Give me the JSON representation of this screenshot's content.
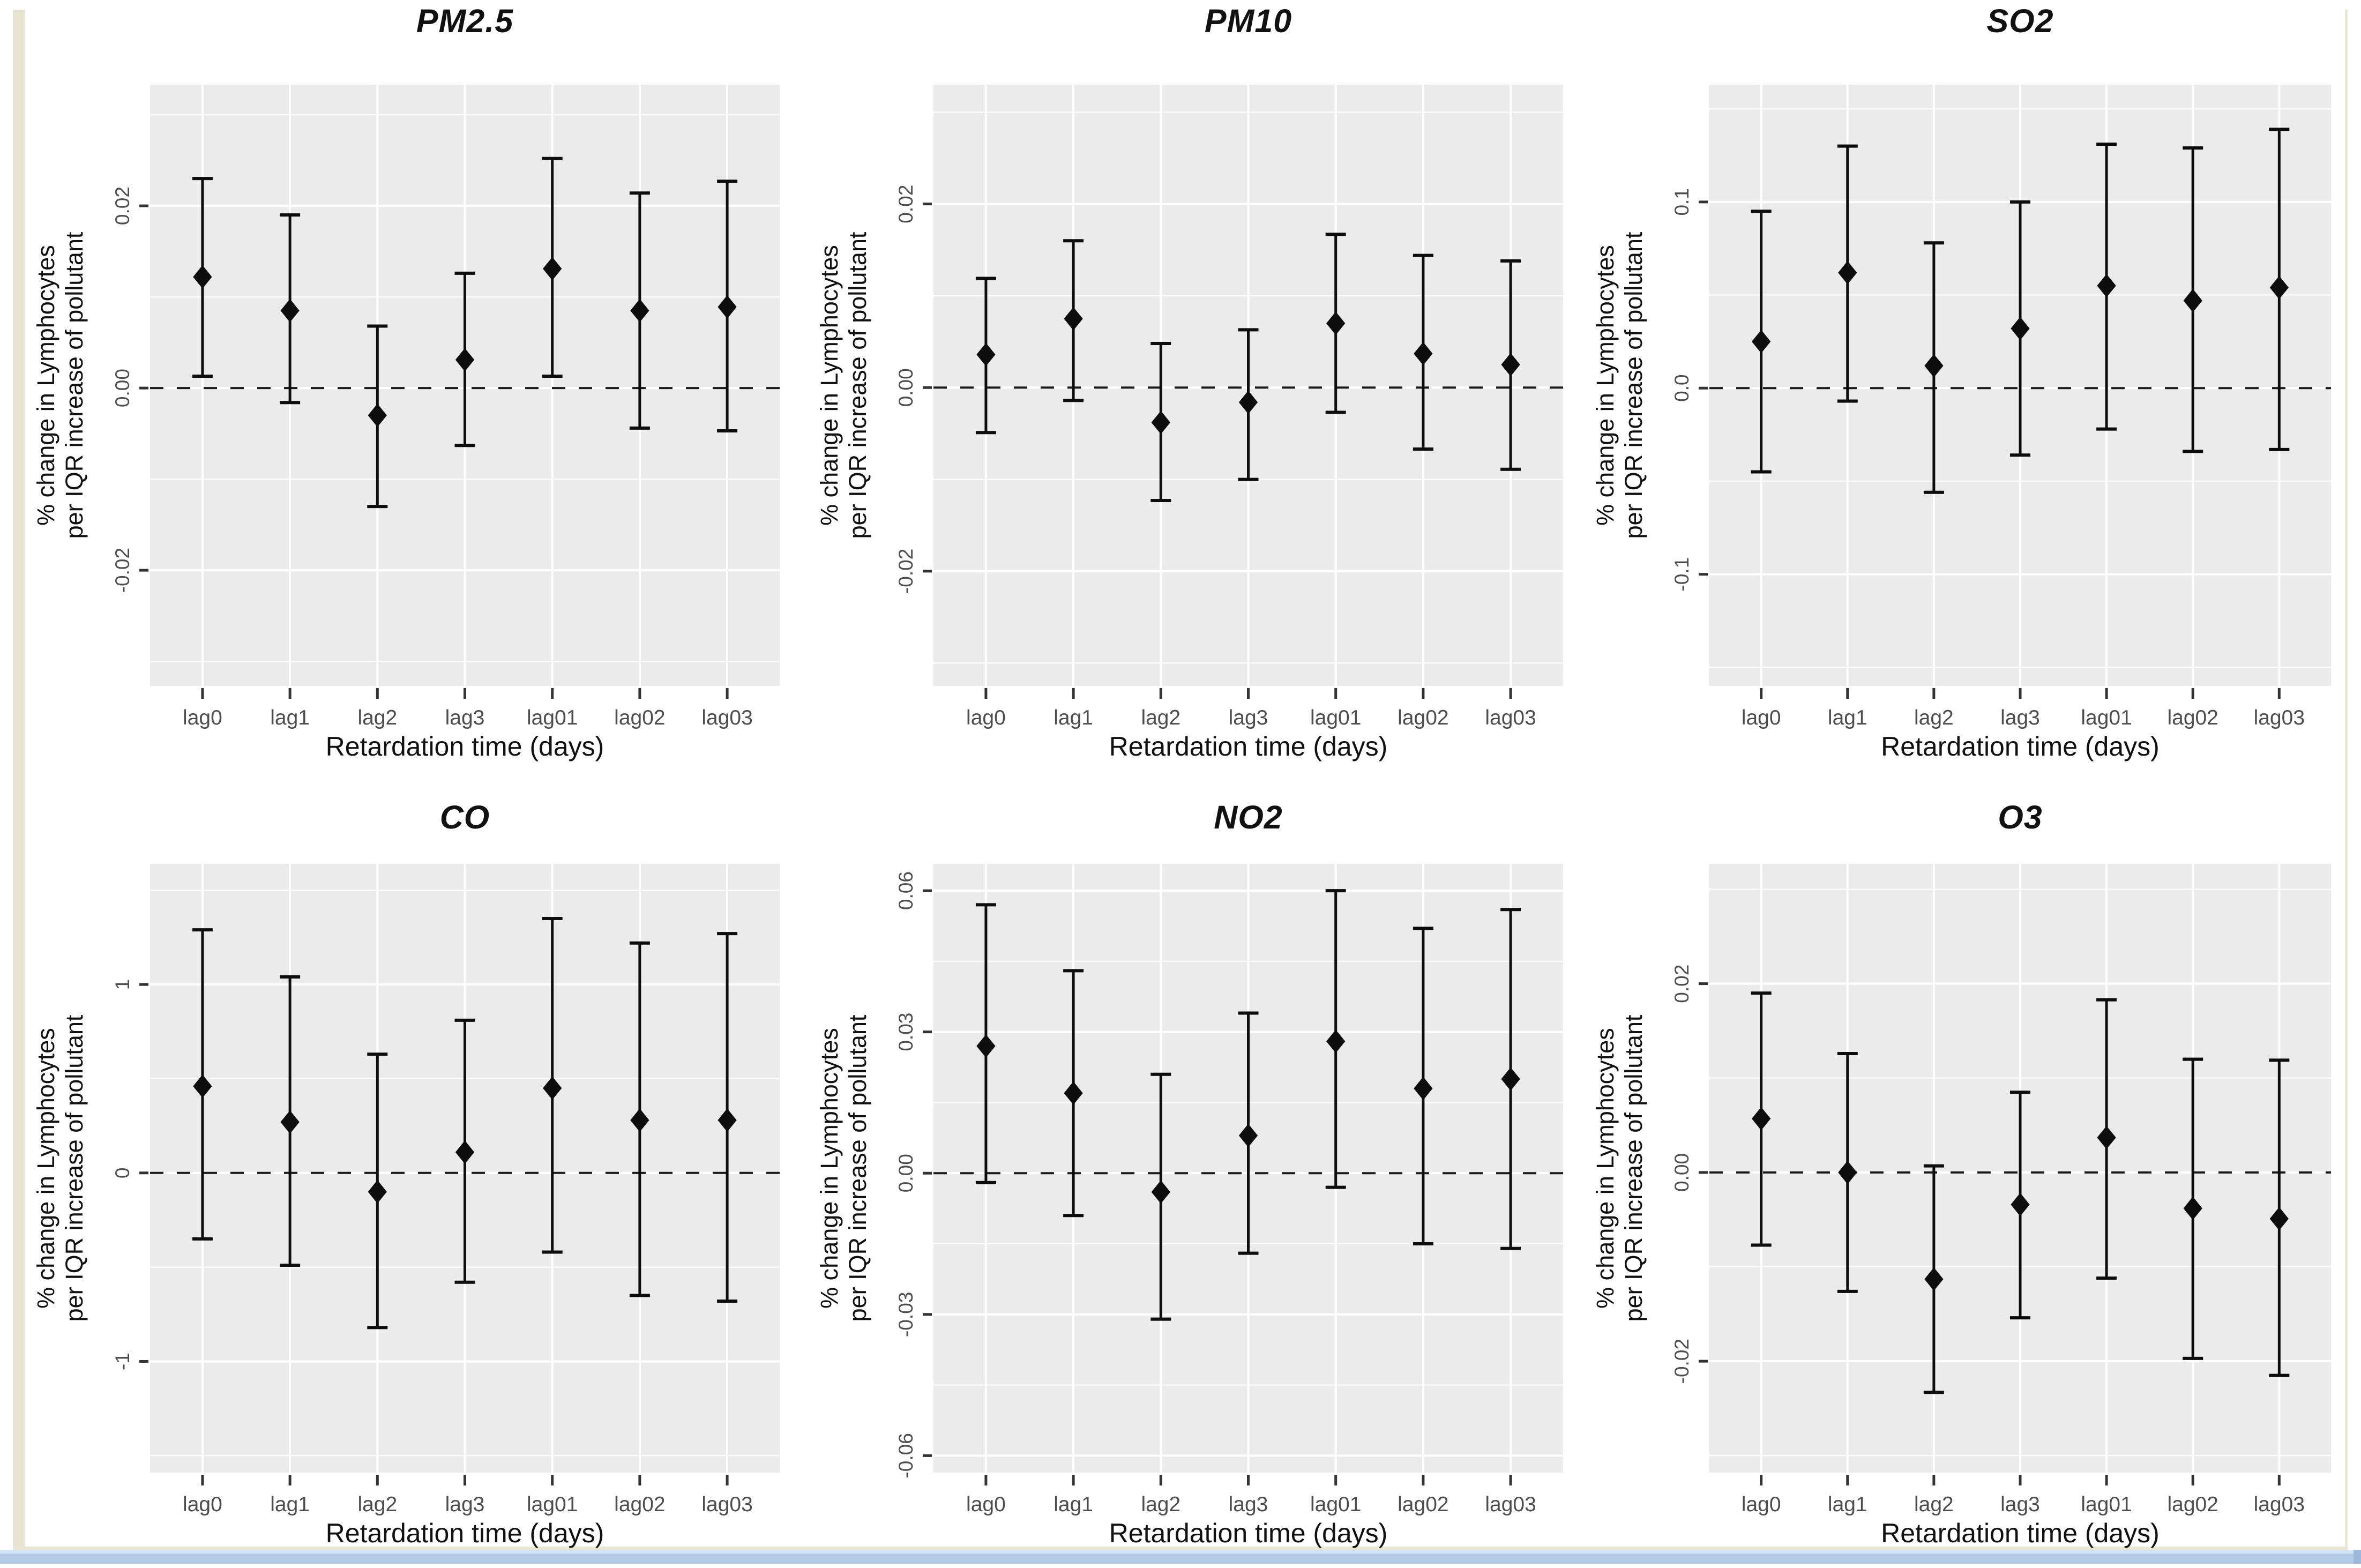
{
  "page": {
    "background": "#ffffff",
    "left_margin_strip_color": "#e9e4d1",
    "page_edge_line_color": "#ece7d5",
    "scrollbar": {
      "track_color": "#b3cbe7",
      "highlight_color": "#d3e4f5",
      "end_cap_color": "#9cb8da"
    }
  },
  "axes": {
    "x_label": "Retardation time (days)",
    "y_label_line1": "% change in  Lymphocytes",
    "y_label_line2": "per IQR increase of pollutant",
    "categories": [
      "lag0",
      "lag1",
      "lag2",
      "lag3",
      "lag01",
      "lag02",
      "lag03"
    ],
    "panel_background": "#ebebeb",
    "gridline_color": "#ffffff",
    "tick_label_color": "#4d4d4d",
    "point_color": "#0d0d0d"
  },
  "chart_data": [
    {
      "type": "errorbar",
      "title": "PM2.5",
      "xlabel": "Retardation time (days)",
      "ylabel": "% change in Lymphocytes per IQR increase of pollutant",
      "ylim": [
        -0.0327,
        0.0333
      ],
      "yticks": [
        0.02,
        0,
        -0.02
      ],
      "ytick_labels": [
        "0.02",
        "0.00",
        "-0.02"
      ],
      "minor_step": 0.01,
      "zero_reference_line": 0,
      "points": [
        {
          "lag": "lag0",
          "estimate": 0.0122,
          "ci_low": 0.0013,
          "ci_high": 0.023
        },
        {
          "lag": "lag1",
          "estimate": 0.0085,
          "ci_low": -0.0016,
          "ci_high": 0.019
        },
        {
          "lag": "lag2",
          "estimate": -0.003,
          "ci_low": -0.013,
          "ci_high": 0.0068
        },
        {
          "lag": "lag3",
          "estimate": 0.0031,
          "ci_low": -0.0063,
          "ci_high": 0.0126
        },
        {
          "lag": "lag01",
          "estimate": 0.0131,
          "ci_low": 0.0013,
          "ci_high": 0.0252
        },
        {
          "lag": "lag02",
          "estimate": 0.0085,
          "ci_low": -0.0044,
          "ci_high": 0.0214
        },
        {
          "lag": "lag03",
          "estimate": 0.0089,
          "ci_low": -0.0047,
          "ci_high": 0.0227
        }
      ]
    },
    {
      "type": "errorbar",
      "title": "PM10",
      "xlabel": "Retardation time (days)",
      "ylabel": "% change in Lymphocytes per IQR increase of pollutant",
      "ylim": [
        -0.0325,
        0.033
      ],
      "yticks": [
        0.02,
        0,
        -0.02
      ],
      "ytick_labels": [
        "0.02",
        "0.00",
        "-0.02"
      ],
      "minor_step": 0.01,
      "zero_reference_line": 0,
      "points": [
        {
          "lag": "lag0",
          "estimate": 0.0036,
          "ci_low": -0.0049,
          "ci_high": 0.0119
        },
        {
          "lag": "lag1",
          "estimate": 0.0075,
          "ci_low": -0.0014,
          "ci_high": 0.016
        },
        {
          "lag": "lag2",
          "estimate": -0.0038,
          "ci_low": -0.0123,
          "ci_high": 0.0048
        },
        {
          "lag": "lag3",
          "estimate": -0.0016,
          "ci_low": -0.01,
          "ci_high": 0.0063
        },
        {
          "lag": "lag01",
          "estimate": 0.007,
          "ci_low": -0.0027,
          "ci_high": 0.0167
        },
        {
          "lag": "lag02",
          "estimate": 0.0037,
          "ci_low": -0.0067,
          "ci_high": 0.0144
        },
        {
          "lag": "lag03",
          "estimate": 0.0025,
          "ci_low": -0.0089,
          "ci_high": 0.0138
        }
      ]
    },
    {
      "type": "errorbar",
      "title": "SO2",
      "xlabel": "Retardation time (days)",
      "ylabel": "% change in Lymphocytes per IQR increase of pollutant",
      "ylim": [
        -0.16,
        0.163
      ],
      "yticks": [
        0.1,
        0,
        -0.1
      ],
      "ytick_labels": [
        "0.1",
        "0.0",
        "-0.1"
      ],
      "minor_step": 0.05,
      "zero_reference_line": 0,
      "points": [
        {
          "lag": "lag0",
          "estimate": 0.025,
          "ci_low": -0.045,
          "ci_high": 0.095
        },
        {
          "lag": "lag1",
          "estimate": 0.062,
          "ci_low": -0.007,
          "ci_high": 0.13
        },
        {
          "lag": "lag2",
          "estimate": 0.012,
          "ci_low": -0.056,
          "ci_high": 0.078
        },
        {
          "lag": "lag3",
          "estimate": 0.032,
          "ci_low": -0.036,
          "ci_high": 0.1
        },
        {
          "lag": "lag01",
          "estimate": 0.055,
          "ci_low": -0.022,
          "ci_high": 0.131
        },
        {
          "lag": "lag02",
          "estimate": 0.047,
          "ci_low": -0.034,
          "ci_high": 0.129
        },
        {
          "lag": "lag03",
          "estimate": 0.054,
          "ci_low": -0.033,
          "ci_high": 0.139
        }
      ]
    },
    {
      "type": "errorbar",
      "title": "CO",
      "xlabel": "Retardation time (days)",
      "ylabel": "% change in Lymphocytes per IQR increase of pollutant",
      "ylim": [
        -1.59,
        1.64
      ],
      "yticks": [
        1,
        0,
        -1
      ],
      "ytick_labels": [
        "1",
        "0",
        "-1"
      ],
      "minor_step": 0.5,
      "zero_reference_line": 0,
      "points": [
        {
          "lag": "lag0",
          "estimate": 0.46,
          "ci_low": -0.35,
          "ci_high": 1.29
        },
        {
          "lag": "lag1",
          "estimate": 0.27,
          "ci_low": -0.49,
          "ci_high": 1.04
        },
        {
          "lag": "lag2",
          "estimate": -0.1,
          "ci_low": -0.82,
          "ci_high": 0.63
        },
        {
          "lag": "lag3",
          "estimate": 0.11,
          "ci_low": -0.58,
          "ci_high": 0.81
        },
        {
          "lag": "lag01",
          "estimate": 0.45,
          "ci_low": -0.42,
          "ci_high": 1.35
        },
        {
          "lag": "lag02",
          "estimate": 0.28,
          "ci_low": -0.65,
          "ci_high": 1.22
        },
        {
          "lag": "lag03",
          "estimate": 0.28,
          "ci_low": -0.68,
          "ci_high": 1.27
        }
      ]
    },
    {
      "type": "errorbar",
      "title": "NO2",
      "xlabel": "Retardation time (days)",
      "ylabel": "% change in Lymphocytes per IQR increase of pollutant",
      "ylim": [
        -0.0636,
        0.0657
      ],
      "yticks": [
        0.06,
        0.03,
        0,
        -0.03,
        -0.06
      ],
      "ytick_labels": [
        "0.06",
        "0.03",
        "0.00",
        "-0.03",
        "-0.06"
      ],
      "minor_step": 0.015,
      "zero_reference_line": 0,
      "points": [
        {
          "lag": "lag0",
          "estimate": 0.027,
          "ci_low": -0.002,
          "ci_high": 0.057
        },
        {
          "lag": "lag1",
          "estimate": 0.017,
          "ci_low": -0.009,
          "ci_high": 0.043
        },
        {
          "lag": "lag2",
          "estimate": -0.004,
          "ci_low": -0.031,
          "ci_high": 0.021
        },
        {
          "lag": "lag3",
          "estimate": 0.008,
          "ci_low": -0.017,
          "ci_high": 0.034
        },
        {
          "lag": "lag01",
          "estimate": 0.028,
          "ci_low": -0.003,
          "ci_high": 0.06
        },
        {
          "lag": "lag02",
          "estimate": 0.018,
          "ci_low": -0.015,
          "ci_high": 0.052
        },
        {
          "lag": "lag03",
          "estimate": 0.02,
          "ci_low": -0.016,
          "ci_high": 0.056
        }
      ]
    },
    {
      "type": "errorbar",
      "title": "O3",
      "xlabel": "Retardation time (days)",
      "ylabel": "% change in Lymphocytes per IQR increase of pollutant",
      "ylim": [
        -0.0318,
        0.0327
      ],
      "yticks": [
        0.02,
        0,
        -0.02
      ],
      "ytick_labels": [
        "0.02",
        "0.00",
        "-0.02"
      ],
      "minor_step": 0.01,
      "zero_reference_line": 0,
      "points": [
        {
          "lag": "lag0",
          "estimate": 0.0057,
          "ci_low": -0.0077,
          "ci_high": 0.019
        },
        {
          "lag": "lag1",
          "estimate": 0.0,
          "ci_low": -0.0126,
          "ci_high": 0.0126
        },
        {
          "lag": "lag2",
          "estimate": -0.0113,
          "ci_low": -0.0233,
          "ci_high": 0.0007
        },
        {
          "lag": "lag3",
          "estimate": -0.0034,
          "ci_low": -0.0154,
          "ci_high": 0.0085
        },
        {
          "lag": "lag01",
          "estimate": 0.0037,
          "ci_low": -0.0112,
          "ci_high": 0.0183
        },
        {
          "lag": "lag02",
          "estimate": -0.0038,
          "ci_low": -0.0197,
          "ci_high": 0.012
        },
        {
          "lag": "lag03",
          "estimate": -0.0049,
          "ci_low": -0.0215,
          "ci_high": 0.0119
        }
      ]
    }
  ]
}
